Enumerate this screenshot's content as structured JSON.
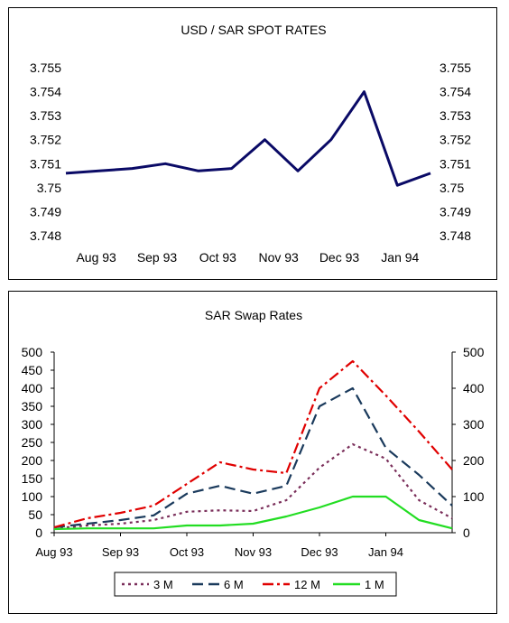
{
  "chart_data": [
    {
      "type": "line",
      "title": "USD / SAR SPOT RATES",
      "x_tick_labels": [
        "Aug 93",
        "Sep 93",
        "Oct 93",
        "Nov 93",
        "Dec 93",
        "Jan 94"
      ],
      "y_ticks": [
        "3.755",
        "3.754",
        "3.753",
        "3.752",
        "3.751",
        "3.75",
        "3.749",
        "3.748"
      ],
      "ylim": [
        3.748,
        3.755
      ],
      "axis_right_duplicate": true,
      "grid": false,
      "series": [
        {
          "color": "#0a0a66",
          "values": [
            3.7506,
            3.7507,
            3.7508,
            3.751,
            3.7507,
            3.7508,
            3.752,
            3.7507,
            3.752,
            3.754,
            3.7501,
            3.7506
          ]
        }
      ]
    },
    {
      "type": "line",
      "title": "SAR Swap Rates",
      "x_tick_labels": [
        "Aug 93",
        "Sep 93",
        "Oct 93",
        "Nov 93",
        "Dec 93",
        "Jan 94"
      ],
      "y_ticks_left": [
        "500",
        "450",
        "400",
        "350",
        "300",
        "250",
        "200",
        "150",
        "100",
        "50",
        "0"
      ],
      "y_ticks_right": [
        "500",
        "400",
        "300",
        "200",
        "100",
        "0"
      ],
      "ylim": [
        0,
        500
      ],
      "grid": false,
      "legend_position": "bottom",
      "series": [
        {
          "name": "3 M",
          "color": "#7a2e5a",
          "dash": "3,4",
          "values": [
            12,
            20,
            25,
            35,
            58,
            62,
            60,
            90,
            180,
            245,
            205,
            90,
            40
          ]
        },
        {
          "name": "6 M",
          "color": "#1a3a5c",
          "dash": "12,6",
          "values": [
            15,
            25,
            35,
            48,
            108,
            130,
            108,
            130,
            350,
            400,
            235,
            160,
            75
          ]
        },
        {
          "name": "12 M",
          "color": "#e00000",
          "dash": "12,4,3,4",
          "values": [
            15,
            40,
            55,
            75,
            135,
            195,
            175,
            165,
            400,
            475,
            380,
            280,
            175
          ]
        },
        {
          "name": "1 M",
          "color": "#22dd22",
          "dash": "",
          "values": [
            10,
            12,
            12,
            12,
            20,
            20,
            25,
            45,
            70,
            100,
            100,
            35,
            12
          ]
        }
      ]
    }
  ]
}
